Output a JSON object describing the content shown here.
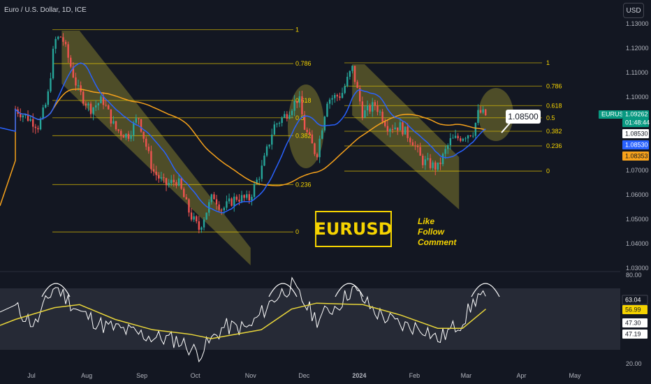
{
  "header": {
    "title": "Euro / U.S. Dollar, 1D, ICE",
    "currency_button": "USD"
  },
  "brand": {
    "label": "EURUSD",
    "cta_like": "Like",
    "cta_follow": "Follow",
    "cta_comment": "Comment",
    "callout_price": "1.08500"
  },
  "price_badges": {
    "symbol": "EURUSD",
    "last_price": "1.09262",
    "countdown": "01:48:44",
    "badge_1": "1.08530",
    "badge_2": "1.08530",
    "badge_3": "1.08353"
  },
  "rsi_badges": [
    "63.04",
    "56.99",
    "47.30",
    "47.19"
  ],
  "colors": {
    "background": "#131722",
    "up_candle": "#26a69a",
    "down_candle": "#ef5350",
    "ma_blue": "#2962ff",
    "ma_orange": "#f7a21b",
    "fib": "#f5d300",
    "channel": "#807a2e"
  },
  "chart_data": [
    {
      "type": "candlestick",
      "instrument": "Euro / U.S. Dollar",
      "timeframe": "1D",
      "source": "ICE",
      "y_ticks": [
        "1.13000",
        "1.12000",
        "1.11000",
        "1.10000",
        "1.09000",
        "1.08000",
        "1.07000",
        "1.06000",
        "1.05000",
        "1.04000",
        "1.03000"
      ],
      "x_ticks": [
        "Jul",
        "Aug",
        "Sep",
        "Oct",
        "Nov",
        "Dec",
        "2024",
        "Feb",
        "Mar",
        "Apr",
        "May"
      ],
      "ylim": [
        1.03,
        1.131
      ],
      "close_path": [
        {
          "date": "2023-06-22",
          "value": 1.095
        },
        {
          "date": "2023-06-30",
          "value": 1.091
        },
        {
          "date": "2023-07-05",
          "value": 1.088
        },
        {
          "date": "2023-07-10",
          "value": 1.099
        },
        {
          "date": "2023-07-14",
          "value": 1.123
        },
        {
          "date": "2023-07-18",
          "value": 1.125
        },
        {
          "date": "2023-07-27",
          "value": 1.103
        },
        {
          "date": "2023-08-03",
          "value": 1.095
        },
        {
          "date": "2023-08-10",
          "value": 1.099
        },
        {
          "date": "2023-08-17",
          "value": 1.087
        },
        {
          "date": "2023-08-24",
          "value": 1.084
        },
        {
          "date": "2023-08-30",
          "value": 1.092
        },
        {
          "date": "2023-09-07",
          "value": 1.07
        },
        {
          "date": "2023-09-14",
          "value": 1.064
        },
        {
          "date": "2023-09-21",
          "value": 1.066
        },
        {
          "date": "2023-09-28",
          "value": 1.052
        },
        {
          "date": "2023-10-03",
          "value": 1.046
        },
        {
          "date": "2023-10-11",
          "value": 1.06
        },
        {
          "date": "2023-10-16",
          "value": 1.054
        },
        {
          "date": "2023-10-24",
          "value": 1.059
        },
        {
          "date": "2023-10-31",
          "value": 1.058
        },
        {
          "date": "2023-11-07",
          "value": 1.07
        },
        {
          "date": "2023-11-14",
          "value": 1.088
        },
        {
          "date": "2023-11-21",
          "value": 1.093
        },
        {
          "date": "2023-11-28",
          "value": 1.1
        },
        {
          "date": "2023-12-01",
          "value": 1.088
        },
        {
          "date": "2023-12-08",
          "value": 1.076
        },
        {
          "date": "2023-12-14",
          "value": 1.099
        },
        {
          "date": "2023-12-22",
          "value": 1.101
        },
        {
          "date": "2023-12-28",
          "value": 1.112
        },
        {
          "date": "2024-01-03",
          "value": 1.093
        },
        {
          "date": "2024-01-10",
          "value": 1.097
        },
        {
          "date": "2024-01-17",
          "value": 1.088
        },
        {
          "date": "2024-01-24",
          "value": 1.088
        },
        {
          "date": "2024-01-31",
          "value": 1.082
        },
        {
          "date": "2024-02-05",
          "value": 1.074
        },
        {
          "date": "2024-02-14",
          "value": 1.071
        },
        {
          "date": "2024-02-21",
          "value": 1.082
        },
        {
          "date": "2024-02-28",
          "value": 1.084
        },
        {
          "date": "2024-03-05",
          "value": 1.086
        },
        {
          "date": "2024-03-08",
          "value": 1.094
        },
        {
          "date": "2024-03-12",
          "value": 1.0926
        }
      ],
      "moving_averages": [
        {
          "name": "MA (blue)",
          "color": "#2962ff",
          "last": 1.0853
        },
        {
          "name": "MA (orange)",
          "color": "#f7a21b",
          "last": 1.08353
        }
      ],
      "fibonacci": [
        {
          "set": 1,
          "levels": [
            {
              "label": "1",
              "price": 1.1276
            },
            {
              "label": "0.786",
              "price": 1.1137
            },
            {
              "label": "0.618",
              "price": 1.0986
            },
            {
              "label": "0.5",
              "price": 1.0915
            },
            {
              "label": "0.382",
              "price": 1.0842
            },
            {
              "label": "0.236",
              "price": 1.0642
            },
            {
              "label": "0",
              "price": 1.0448
            }
          ]
        },
        {
          "set": 2,
          "levels": [
            {
              "label": "1",
              "price": 1.114
            },
            {
              "label": "0.786",
              "price": 1.1045
            },
            {
              "label": "0.618",
              "price": 1.0965
            },
            {
              "label": "0.5",
              "price": 1.0915
            },
            {
              "label": "0.382",
              "price": 1.086
            },
            {
              "label": "0.236",
              "price": 1.08
            },
            {
              "label": "0",
              "price": 1.0697
            }
          ]
        }
      ]
    },
    {
      "type": "line",
      "name": "RSI",
      "y_ticks": [
        "80.00",
        "20.00"
      ],
      "ylim": [
        20,
        80
      ],
      "series": [
        {
          "color": "#ffffff",
          "points": [
            {
              "date": "2023-06-22",
              "value": 58
            },
            {
              "date": "2023-07-03",
              "value": 46
            },
            {
              "date": "2023-07-14",
              "value": 73
            },
            {
              "date": "2023-07-28",
              "value": 55
            },
            {
              "date": "2023-08-10",
              "value": 46
            },
            {
              "date": "2023-08-24",
              "value": 42
            },
            {
              "date": "2023-09-07",
              "value": 38
            },
            {
              "date": "2023-09-21",
              "value": 36
            },
            {
              "date": "2023-10-03",
              "value": 27
            },
            {
              "date": "2023-10-17",
              "value": 45
            },
            {
              "date": "2023-10-31",
              "value": 44
            },
            {
              "date": "2023-11-14",
              "value": 64
            },
            {
              "date": "2023-11-24",
              "value": 73
            },
            {
              "date": "2023-12-08",
              "value": 50
            },
            {
              "date": "2023-12-22",
              "value": 62
            },
            {
              "date": "2023-12-28",
              "value": 71
            },
            {
              "date": "2024-01-10",
              "value": 55
            },
            {
              "date": "2024-01-24",
              "value": 46
            },
            {
              "date": "2024-02-07",
              "value": 44
            },
            {
              "date": "2024-02-14",
              "value": 36
            },
            {
              "date": "2024-02-28",
              "value": 49
            },
            {
              "date": "2024-03-08",
              "value": 67
            },
            {
              "date": "2024-03-12",
              "value": 63.04
            }
          ]
        },
        {
          "color": "#e8d53a",
          "points": [
            {
              "date": "2023-06-22",
              "value": 50
            },
            {
              "date": "2023-07-14",
              "value": 58
            },
            {
              "date": "2023-07-28",
              "value": 60
            },
            {
              "date": "2023-08-17",
              "value": 50
            },
            {
              "date": "2023-09-07",
              "value": 43
            },
            {
              "date": "2023-09-28",
              "value": 40
            },
            {
              "date": "2023-10-10",
              "value": 37
            },
            {
              "date": "2023-11-07",
              "value": 43
            },
            {
              "date": "2023-11-24",
              "value": 57
            },
            {
              "date": "2023-12-08",
              "value": 61
            },
            {
              "date": "2024-01-03",
              "value": 60
            },
            {
              "date": "2024-01-24",
              "value": 53
            },
            {
              "date": "2024-02-14",
              "value": 44
            },
            {
              "date": "2024-02-28",
              "value": 44
            },
            {
              "date": "2024-03-12",
              "value": 56.99
            }
          ]
        }
      ]
    }
  ]
}
